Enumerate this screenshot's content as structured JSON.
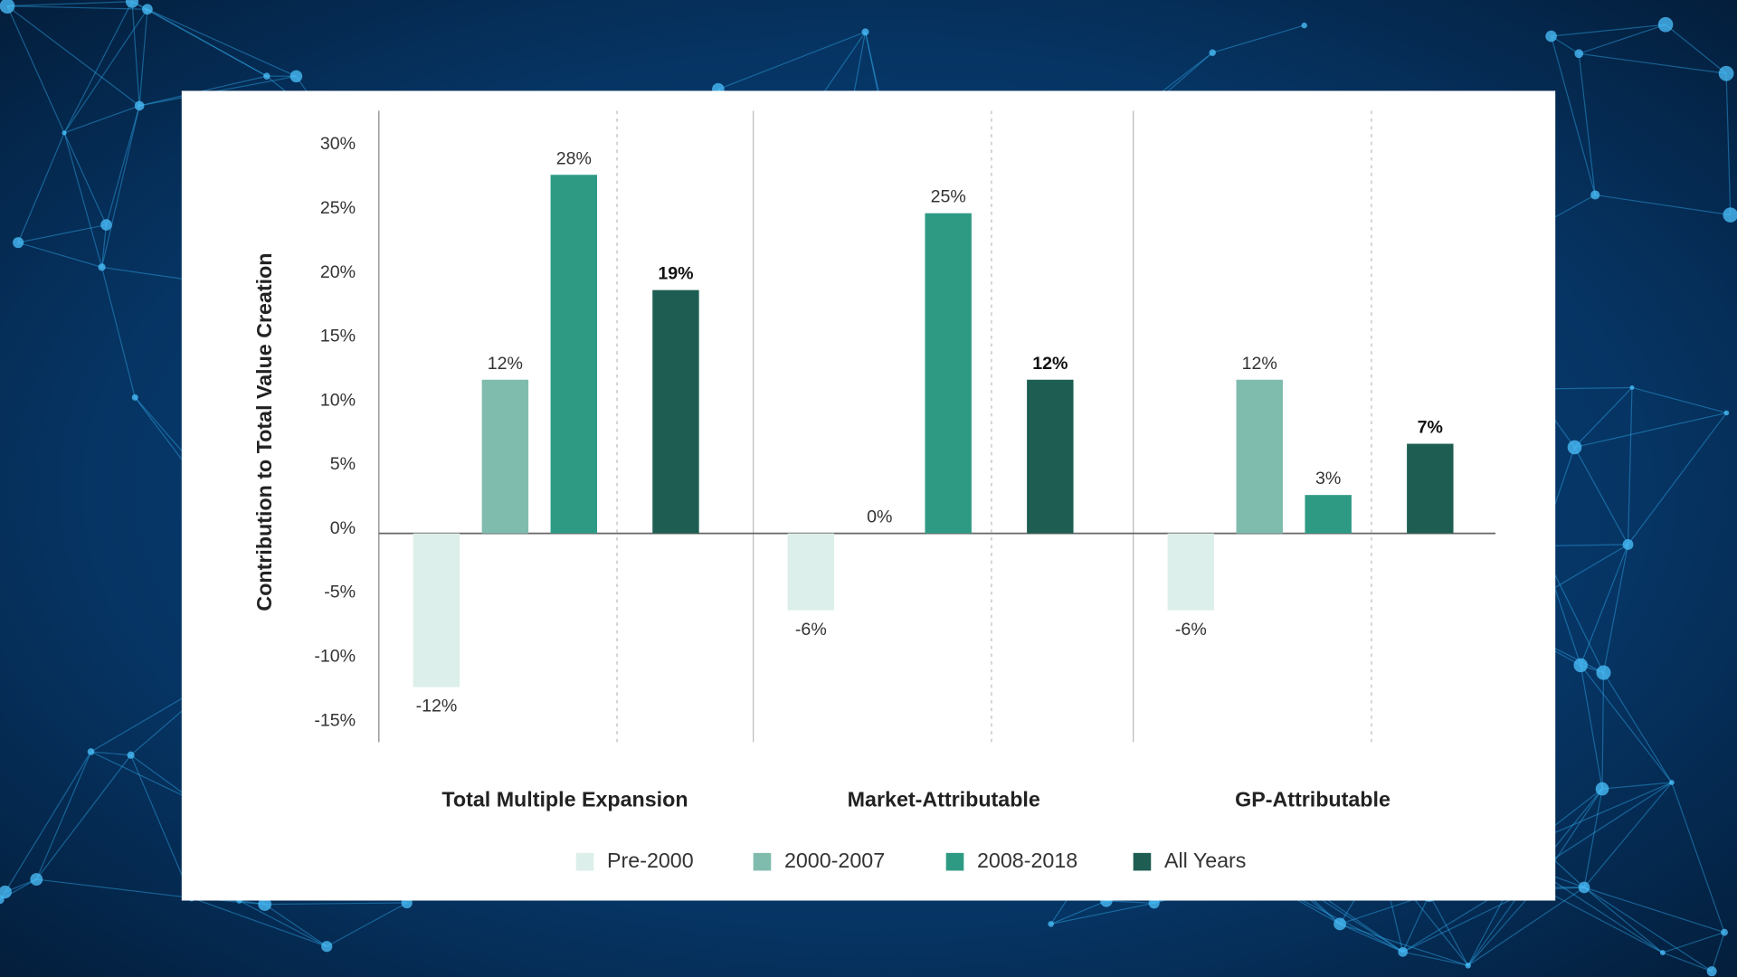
{
  "chart_data": {
    "type": "bar",
    "y_label": "Contribution to Total Value Creation",
    "categories": [
      "Total Multiple Expansion",
      "Market-Attributable",
      "GP-Attributable"
    ],
    "series": [
      {
        "name": "Pre-2000",
        "color": "#dcefea",
        "values": [
          -12,
          -6,
          -6
        ],
        "value_labels": [
          "-12%",
          "-6%",
          "-6%"
        ]
      },
      {
        "name": "2000-2007",
        "color": "#7fbcae",
        "values": [
          12,
          0,
          12
        ],
        "value_labels": [
          "12%",
          "0%",
          "12%"
        ]
      },
      {
        "name": "2008-2018",
        "color": "#2e9a84",
        "values": [
          28,
          25,
          3
        ],
        "value_labels": [
          "28%",
          "25%",
          "3%"
        ]
      },
      {
        "name": "All Years",
        "color": "#1e5e52",
        "values": [
          19,
          12,
          7
        ],
        "value_labels": [
          "19%",
          "12%",
          "7%"
        ]
      }
    ],
    "ylim": [
      -16.3,
      33
    ],
    "yticks": [
      {
        "value": -15,
        "label": "-15%"
      },
      {
        "value": -10,
        "label": "-10%"
      },
      {
        "value": -5,
        "label": "-5%"
      },
      {
        "value": 0,
        "label": "0%"
      },
      {
        "value": 5,
        "label": "5%"
      },
      {
        "value": 10,
        "label": "10%"
      },
      {
        "value": 15,
        "label": "15%"
      },
      {
        "value": 20,
        "label": "20%"
      },
      {
        "value": 25,
        "label": "25%"
      },
      {
        "value": 30,
        "label": "30%"
      }
    ],
    "grid": false,
    "legend": "bottom"
  }
}
